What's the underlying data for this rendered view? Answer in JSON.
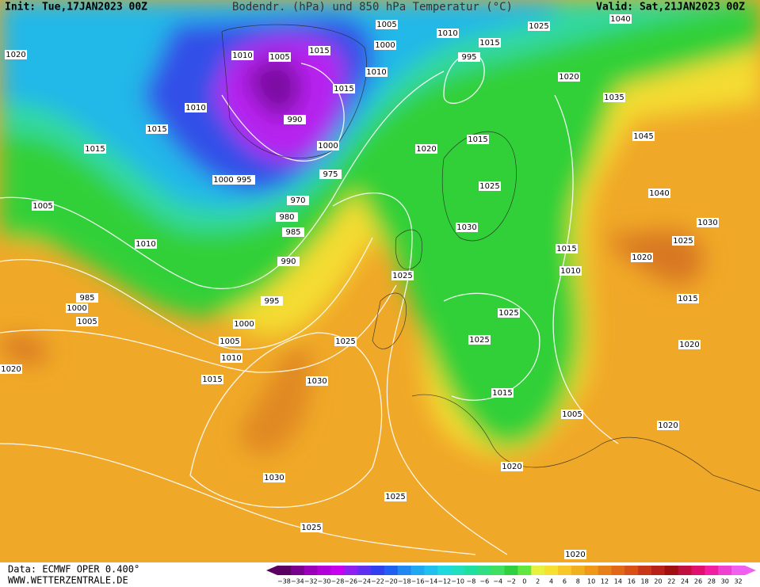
{
  "header": {
    "init": "Init: Tue,17JAN2023 00Z",
    "title": "Bodendr. (hPa) und 850 hPa Temperatur (°C)",
    "valid": "Valid: Sat,21JAN2023 00Z"
  },
  "footer": {
    "source": "Data: ECMWF OPER 0.400°",
    "website": "WWW.WETTERZENTRALE.DE"
  },
  "colorbar": {
    "labels": [
      "−38",
      "−34",
      "−32",
      "−30",
      "−28",
      "−26",
      "−24",
      "−22",
      "−20",
      "−18",
      "−16",
      "−14",
      "−12",
      "−10",
      "−8",
      "−6",
      "−4",
      "−2",
      "0",
      "2",
      "4",
      "6",
      "8",
      "10",
      "12",
      "14",
      "16",
      "18",
      "20",
      "22",
      "24",
      "26",
      "28",
      "30",
      "32"
    ],
    "colors": [
      "#5a0060",
      "#7a0090",
      "#9a00b8",
      "#b400d8",
      "#c800f0",
      "#9020f0",
      "#6030f0",
      "#3040f0",
      "#2060f0",
      "#2088f0",
      "#20a8f0",
      "#20c0f0",
      "#20d8e0",
      "#20e0c0",
      "#20e0a0",
      "#30e080",
      "#40e060",
      "#30d040",
      "#60e840",
      "#e8f040",
      "#f8e030",
      "#f8c828",
      "#f0b020",
      "#f09818",
      "#e88018",
      "#e06818",
      "#d85018",
      "#c83818",
      "#b82018",
      "#a01010",
      "#c01040",
      "#e01070",
      "#f020a0",
      "#f040d0",
      "#f060f0"
    ]
  },
  "isobar_labels": [
    "1005",
    "1010",
    "1015",
    "1025",
    "1040",
    "1000",
    "995",
    "1010",
    "1005",
    "1015",
    "1010",
    "1020",
    "1035",
    "1015",
    "1010",
    "990",
    "1015",
    "1015",
    "1000",
    "1020",
    "1015",
    "1045",
    "975",
    "1000",
    "995",
    "1025",
    "1040",
    "970",
    "1005",
    "980",
    "1030",
    "985",
    "1030",
    "1025",
    "1010",
    "1015",
    "1020",
    "990",
    "1010",
    "1025",
    "985",
    "995",
    "1015",
    "1000",
    "1005",
    "1025",
    "1000",
    "1025",
    "1025",
    "1005",
    "1020",
    "1010",
    "1015",
    "1030",
    "1015",
    "1005",
    "1020",
    "1020",
    "1030",
    "1025",
    "1025",
    "1020",
    "1020",
    "1020"
  ]
}
